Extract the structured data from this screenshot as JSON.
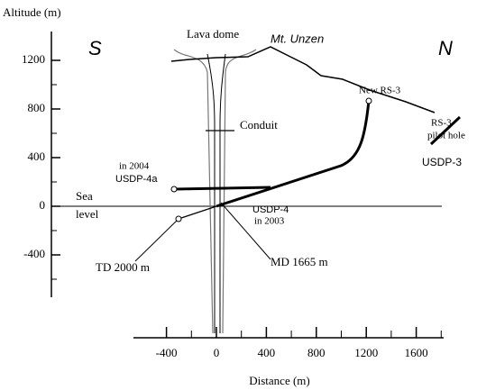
{
  "y_axis": {
    "label": "Altitude (m)",
    "ticks": [
      1200,
      800,
      400,
      0,
      -400
    ]
  },
  "x_axis": {
    "label": "Distance (m)",
    "ticks": [
      -400,
      0,
      400,
      800,
      1200,
      1600
    ]
  },
  "annotations": {
    "south": "S",
    "north": "N",
    "lava_dome": "Lava dome",
    "mountain": "Mt. Unzen",
    "conduit": "Conduit",
    "new_rs3": "New RS-3",
    "rs3_pilot": [
      "RS-3",
      "pilot hole"
    ],
    "usdp3": "USDP-3",
    "usdp4a": [
      "in 2004",
      "USDP-4a"
    ],
    "sea_level": [
      "Sea",
      "level"
    ],
    "usdp4": [
      "USDP-4",
      "in 2003"
    ],
    "td": "TD 2000 m",
    "md": "MD 1665 m"
  }
}
